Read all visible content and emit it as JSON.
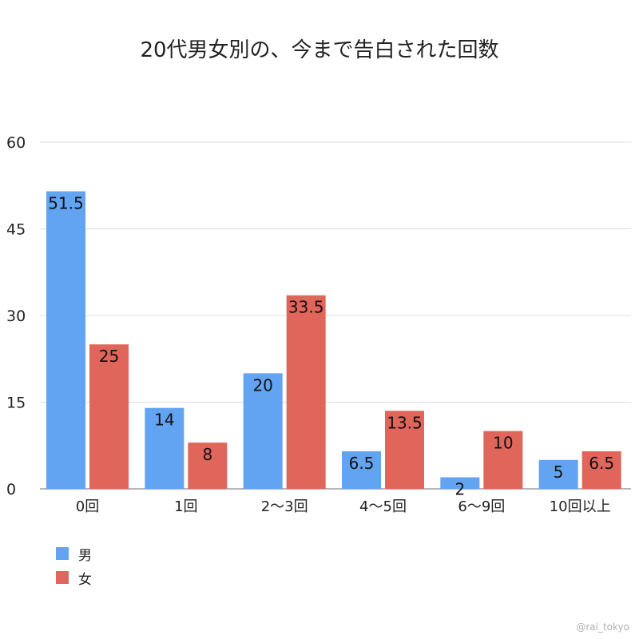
{
  "chart_data": {
    "type": "bar",
    "title": "20代男女別の、今まで告白された回数",
    "categories": [
      "0回",
      "1回",
      "2〜3回",
      "4〜5回",
      "6〜9回",
      "10回以上"
    ],
    "series": [
      {
        "name": "男",
        "color": "#62A4F2",
        "values": [
          51.5,
          14,
          20,
          6.5,
          2,
          5
        ]
      },
      {
        "name": "女",
        "color": "#E0655B",
        "values": [
          25,
          8,
          33.5,
          13.5,
          10,
          6.5
        ]
      }
    ],
    "ylim": [
      0,
      60
    ],
    "yticks": [
      0,
      15,
      30,
      45,
      60
    ],
    "grid": true,
    "legend_position": "bottom-left",
    "data_labels": true
  },
  "watermark": "@rai_tokyo"
}
